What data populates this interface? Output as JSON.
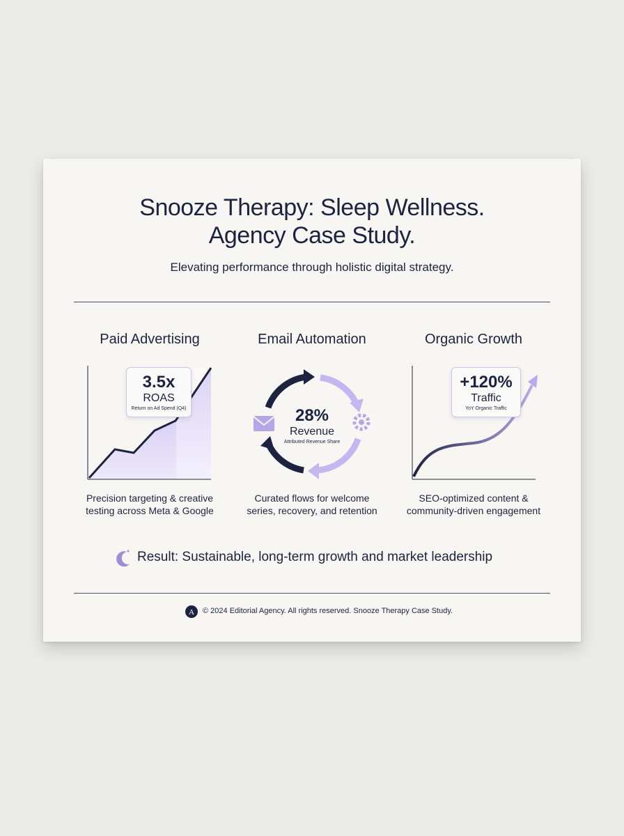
{
  "header": {
    "title_lines": [
      "Snooze Therapy: Sleep Wellness.",
      "Agency Case Study."
    ],
    "subtitle": "Elevating performance through holistic digital strategy."
  },
  "columns": [
    {
      "heading": "Paid Advertising",
      "metric": "3.5x",
      "metric_label": "ROAS",
      "metric_caption": "Return on Ad Spend (Q4)",
      "description": [
        "Precision targeting & creative",
        "testing across Meta & Google"
      ]
    },
    {
      "heading": "Email Automation",
      "metric": "28%",
      "metric_label": "Revenue",
      "metric_caption": "Attributed Revenue Share",
      "description": [
        "Curated flows for welcome",
        "series, recovery, and retention"
      ]
    },
    {
      "heading": "Organic Growth",
      "metric": "+120%",
      "metric_label": "Traffic",
      "metric_caption": "YoY Organic Traffic",
      "description": [
        "SEO-optimized content &",
        "community-driven engagement"
      ]
    }
  ],
  "result": "Result: Sustainable, long-term growth and market leadership",
  "footer": {
    "logo": "A",
    "text": "© 2024 Editorial Agency. All rights reserved. Snooze Therapy Case Study."
  }
}
